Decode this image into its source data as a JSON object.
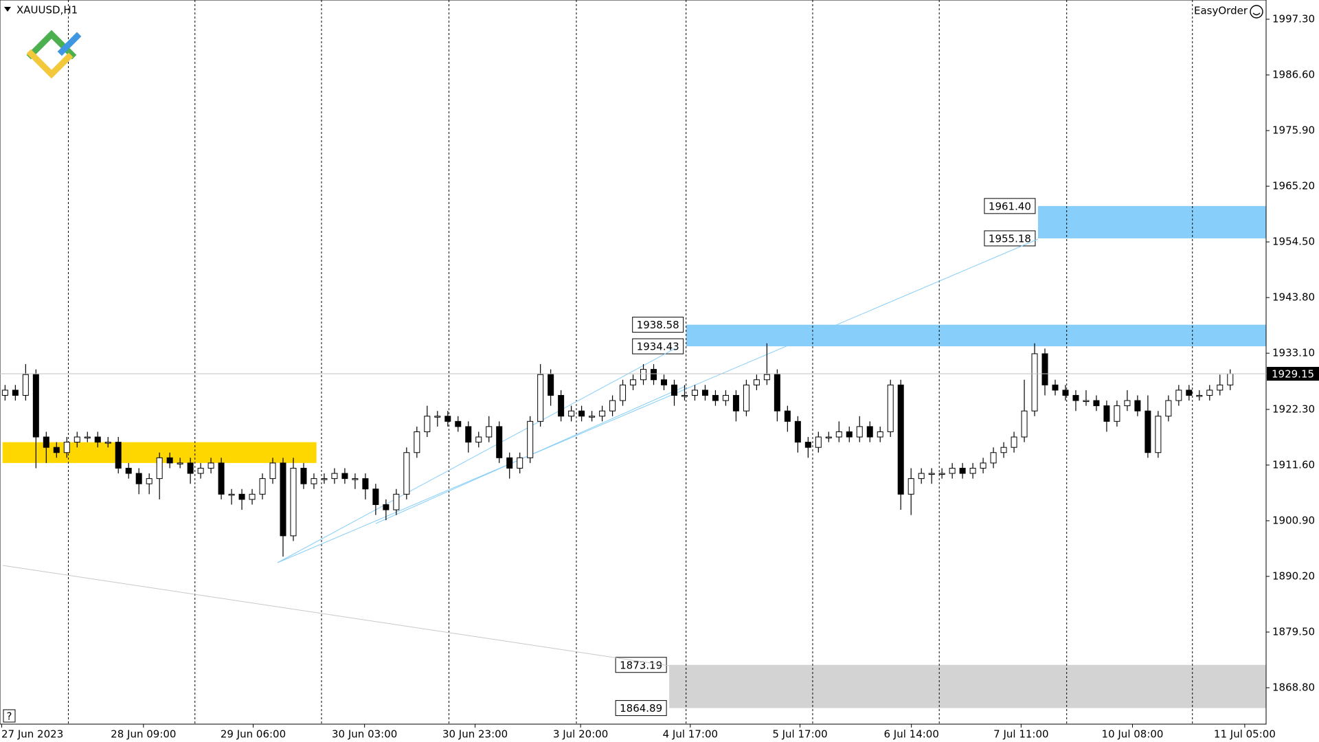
{
  "chart_data": {
    "type": "candlestick",
    "symbol": "XAUUSD,H1",
    "panel_button": "EasyOrder",
    "help": "?",
    "ylim": [
      1861.8,
      2001.0
    ],
    "yticks": [
      {
        "value": 1997.3,
        "label": "1997.30"
      },
      {
        "value": 1986.6,
        "label": "1986.60"
      },
      {
        "value": 1975.9,
        "label": "1975.90"
      },
      {
        "value": 1965.2,
        "label": "1965.20"
      },
      {
        "value": 1954.5,
        "label": "1954.50"
      },
      {
        "value": 1943.8,
        "label": "1943.80"
      },
      {
        "value": 1933.1,
        "label": "1933.10"
      },
      {
        "value": 1922.3,
        "label": "1922.30"
      },
      {
        "value": 1911.6,
        "label": "1911.60"
      },
      {
        "value": 1900.9,
        "label": "1900.90"
      },
      {
        "value": 1890.2,
        "label": "1890.20"
      },
      {
        "value": 1879.5,
        "label": "1879.50"
      },
      {
        "value": 1868.8,
        "label": "1868.80"
      }
    ],
    "x_labels": [
      "27 Jun 2023",
      "28 Jun 09:00",
      "29 Jun 06:00",
      "30 Jun 03:00",
      "30 Jun 23:00",
      "3 Jul 20:00",
      "4 Jul 17:00",
      "5 Jul 17:00",
      "6 Jul 14:00",
      "7 Jul 11:00",
      "10 Jul 08:00",
      "11 Jul 05:00"
    ],
    "current_price": 1929.15,
    "zones": [
      {
        "high": {
          "value": 1961.4,
          "label": "1961.40"
        },
        "low": 1955.18,
        "color": "#87cefa"
      },
      {
        "high": 1938.58,
        "low": 1934.43,
        "color": "#87cefa"
      },
      {
        "high": 1873.19,
        "low": 1864.89,
        "color": "#d3d3d3"
      },
      {
        "high": 1916,
        "low": 1912,
        "color": "#ffd700"
      }
    ],
    "candles": [
      [
        1925,
        1927,
        1924,
        1926
      ],
      [
        1926,
        1927,
        1924,
        1925
      ],
      [
        1925,
        1931,
        1924,
        1929
      ],
      [
        1929,
        1930,
        1911,
        1917
      ],
      [
        1917,
        1918,
        1912,
        1915
      ],
      [
        1915,
        1916,
        1913,
        1914
      ],
      [
        1914,
        1917,
        1913,
        1916
      ],
      [
        1916,
        1918,
        1915,
        1917
      ],
      [
        1917,
        1918,
        1916,
        1917
      ],
      [
        1917,
        1918,
        1915,
        1916
      ],
      [
        1916,
        1917,
        1915,
        1916
      ],
      [
        1916,
        1917,
        1910,
        1911
      ],
      [
        1911,
        1912,
        1909,
        1910
      ],
      [
        1910,
        1911,
        1906,
        1908
      ],
      [
        1908,
        1910,
        1906,
        1909
      ],
      [
        1909,
        1914,
        1905,
        1913
      ],
      [
        1913,
        1914,
        1911,
        1912
      ],
      [
        1912,
        1913,
        1911,
        1912
      ],
      [
        1912,
        1913,
        1908,
        1910
      ],
      [
        1910,
        1912,
        1909,
        1911
      ],
      [
        1911,
        1913,
        1910,
        1912
      ],
      [
        1912,
        1913,
        1905,
        1906
      ],
      [
        1906,
        1907,
        1904,
        1906
      ],
      [
        1906,
        1907,
        1903,
        1905
      ],
      [
        1905,
        1907,
        1904,
        1906
      ],
      [
        1906,
        1910,
        1905,
        1909
      ],
      [
        1909,
        1913,
        1908,
        1912
      ],
      [
        1912,
        1913,
        1894,
        1898
      ],
      [
        1898,
        1913,
        1897,
        1911
      ],
      [
        1911,
        1912,
        1907,
        1908
      ],
      [
        1908,
        1910,
        1907,
        1909
      ],
      [
        1909,
        1910,
        1908,
        1909
      ],
      [
        1909,
        1911,
        1908,
        1910
      ],
      [
        1910,
        1911,
        1908,
        1909
      ],
      [
        1909,
        1910,
        1907,
        1909
      ],
      [
        1909,
        1910,
        1905,
        1907
      ],
      [
        1907,
        1908,
        1902,
        1904
      ],
      [
        1904,
        1905,
        1901,
        1903
      ],
      [
        1903,
        1907,
        1902,
        1906
      ],
      [
        1906,
        1915,
        1905,
        1914
      ],
      [
        1914,
        1919,
        1913,
        1918
      ],
      [
        1918,
        1923,
        1917,
        1921
      ],
      [
        1921,
        1922,
        1919,
        1921
      ],
      [
        1921,
        1922,
        1919,
        1920
      ],
      [
        1920,
        1921,
        1918,
        1919
      ],
      [
        1919,
        1920,
        1914,
        1916
      ],
      [
        1916,
        1918,
        1915,
        1917
      ],
      [
        1917,
        1921,
        1916,
        1919
      ],
      [
        1919,
        1920,
        1912,
        1913
      ],
      [
        1913,
        1914,
        1909,
        1911
      ],
      [
        1911,
        1914,
        1910,
        1913
      ],
      [
        1913,
        1921,
        1912,
        1920
      ],
      [
        1920,
        1931,
        1919,
        1929
      ],
      [
        1929,
        1930,
        1923,
        1925
      ],
      [
        1925,
        1926,
        1920,
        1921
      ],
      [
        1921,
        1923,
        1920,
        1922
      ],
      [
        1922,
        1923,
        1920,
        1921
      ],
      [
        1921,
        1922,
        1920,
        1921
      ],
      [
        1921,
        1923,
        1920,
        1922
      ],
      [
        1922,
        1925,
        1921,
        1924
      ],
      [
        1924,
        1928,
        1923,
        1927
      ],
      [
        1927,
        1929,
        1926,
        1928
      ],
      [
        1928,
        1931,
        1927,
        1930
      ],
      [
        1930,
        1931,
        1927,
        1928
      ],
      [
        1928,
        1929,
        1926,
        1927
      ],
      [
        1927,
        1928,
        1923,
        1925
      ],
      [
        1925,
        1927,
        1924,
        1925
      ],
      [
        1925,
        1927,
        1924,
        1926
      ],
      [
        1926,
        1927,
        1924,
        1925
      ],
      [
        1925,
        1926,
        1923,
        1924
      ],
      [
        1924,
        1926,
        1923,
        1925
      ],
      [
        1925,
        1926,
        1920,
        1922
      ],
      [
        1922,
        1928,
        1921,
        1927
      ],
      [
        1927,
        1929,
        1926,
        1928
      ],
      [
        1928,
        1935,
        1927,
        1929
      ],
      [
        1929,
        1930,
        1920,
        1922
      ],
      [
        1922,
        1923,
        1918,
        1920
      ],
      [
        1920,
        1921,
        1914,
        1916
      ],
      [
        1916,
        1917,
        1913,
        1915
      ],
      [
        1915,
        1918,
        1914,
        1917
      ],
      [
        1917,
        1918,
        1916,
        1917
      ],
      [
        1917,
        1920,
        1916,
        1918
      ],
      [
        1918,
        1919,
        1916,
        1917
      ],
      [
        1917,
        1921,
        1916,
        1919
      ],
      [
        1919,
        1920,
        1916,
        1917
      ],
      [
        1917,
        1919,
        1916,
        1918
      ],
      [
        1918,
        1928,
        1917,
        1927
      ],
      [
        1927,
        1928,
        1903,
        1906
      ],
      [
        1906,
        1911,
        1902,
        1909
      ],
      [
        1909,
        1911,
        1908,
        1910
      ],
      [
        1910,
        1911,
        1908,
        1910
      ],
      [
        1910,
        1911,
        1909,
        1910
      ],
      [
        1910,
        1912,
        1909,
        1911
      ],
      [
        1911,
        1912,
        1909,
        1910
      ],
      [
        1910,
        1912,
        1909,
        1911
      ],
      [
        1911,
        1913,
        1910,
        1912
      ],
      [
        1912,
        1915,
        1911,
        1914
      ],
      [
        1914,
        1916,
        1913,
        1915
      ],
      [
        1915,
        1918,
        1914,
        1917
      ],
      [
        1917,
        1928,
        1916,
        1922
      ],
      [
        1922,
        1935,
        1921,
        1933
      ],
      [
        1933,
        1934,
        1925,
        1927
      ],
      [
        1927,
        1928,
        1925,
        1926
      ],
      [
        1926,
        1927,
        1924,
        1925
      ],
      [
        1925,
        1926,
        1922,
        1924
      ],
      [
        1924,
        1926,
        1923,
        1924
      ],
      [
        1924,
        1925,
        1922,
        1923
      ],
      [
        1923,
        1924,
        1918,
        1920
      ],
      [
        1920,
        1924,
        1919,
        1923
      ],
      [
        1923,
        1926,
        1922,
        1924
      ],
      [
        1924,
        1925,
        1921,
        1922
      ],
      [
        1922,
        1925,
        1913,
        1914
      ],
      [
        1914,
        1922,
        1913,
        1921
      ],
      [
        1921,
        1925,
        1920,
        1924
      ],
      [
        1924,
        1927,
        1923,
        1926
      ],
      [
        1926,
        1927,
        1924,
        1925
      ],
      [
        1925,
        1926,
        1924,
        1925
      ],
      [
        1925,
        1927,
        1924,
        1926
      ],
      [
        1926,
        1929,
        1925,
        1927
      ],
      [
        1927,
        1930,
        1926,
        1929.15
      ]
    ]
  }
}
